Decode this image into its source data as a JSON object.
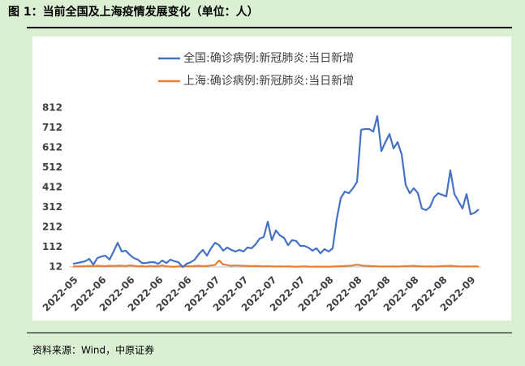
{
  "figure_title": "图 1：当前全国及上海疫情发展变化（单位：人）",
  "source": "资料来源：Wind，中原证券",
  "chart_data": {
    "type": "line",
    "categories": [
      "2022-05",
      null,
      null,
      null,
      null,
      null,
      null,
      "2022-06",
      null,
      null,
      null,
      null,
      null,
      null,
      "2022-06",
      null,
      null,
      null,
      null,
      null,
      null,
      "2022-06",
      null,
      null,
      null,
      null,
      null,
      null,
      "2022-06",
      null,
      null,
      null,
      null,
      null,
      null,
      "2022-07",
      null,
      null,
      null,
      null,
      null,
      null,
      "2022-07",
      null,
      null,
      null,
      null,
      null,
      null,
      "2022-07",
      null,
      null,
      null,
      null,
      null,
      null,
      "2022-07",
      null,
      null,
      null,
      null,
      null,
      null,
      "2022-08",
      null,
      null,
      null,
      null,
      null,
      null,
      "2022-08",
      null,
      null,
      null,
      null,
      null,
      null,
      "2022-08",
      null,
      null,
      null,
      null,
      null,
      null,
      "2022-08",
      null,
      null,
      null,
      null,
      null,
      null,
      "2022-08",
      null,
      null,
      null,
      null,
      null,
      null,
      "2022-09",
      null,
      null
    ],
    "series": [
      {
        "name": "全国:确诊病例:新冠肺炎:当日新增",
        "color": "#4472c4",
        "values": [
          28,
          32,
          36,
          41,
          53,
          24,
          57,
          65,
          69,
          49,
          90,
          134,
          90,
          94,
          73,
          57,
          49,
          32,
          32,
          36,
          36,
          28,
          45,
          32,
          49,
          41,
          36,
          12,
          28,
          36,
          49,
          77,
          98,
          69,
          106,
          134,
          122,
          94,
          110,
          98,
          90,
          98,
          90,
          110,
          106,
          126,
          155,
          163,
          240,
          147,
          196,
          171,
          159,
          122,
          147,
          143,
          118,
          118,
          110,
          94,
          106,
          81,
          102,
          90,
          106,
          253,
          359,
          391,
          383,
          408,
          440,
          702,
          706,
          706,
          693,
          771,
          595,
          640,
          681,
          608,
          640,
          579,
          424,
          383,
          408,
          383,
          306,
          298,
          314,
          363,
          383,
          375,
          367,
          498,
          379,
          342,
          306,
          379,
          277,
          285,
          302
        ]
      },
      {
        "name": "上海:确诊病例:新冠肺炎:当日新增",
        "color": "#ed7d31",
        "values": [
          14,
          15,
          15,
          16,
          17,
          16,
          18,
          17,
          16,
          18,
          17,
          19,
          18,
          17,
          20,
          18,
          15,
          16,
          14,
          17,
          15,
          16,
          20,
          15,
          14,
          13,
          15,
          14,
          16,
          15,
          17,
          18,
          16,
          17,
          20,
          22,
          45,
          25,
          22,
          18,
          20,
          19,
          18,
          17,
          16,
          17,
          16,
          15,
          16,
          15,
          14,
          15,
          14,
          15,
          14,
          13,
          14,
          15,
          14,
          13,
          14,
          13,
          14,
          13,
          14,
          15,
          16,
          17,
          18,
          20,
          24,
          20,
          18,
          17,
          16,
          15,
          14,
          15,
          14,
          15,
          14,
          15,
          16,
          17,
          18,
          16,
          15,
          14,
          15,
          14,
          15,
          16,
          17,
          18,
          16,
          15,
          14,
          15,
          14,
          15,
          14
        ]
      }
    ],
    "ylim": [
      12,
      812
    ],
    "yticks": [
      12,
      112,
      212,
      312,
      412,
      512,
      612,
      712,
      812
    ],
    "grid": false,
    "legend": "top"
  }
}
